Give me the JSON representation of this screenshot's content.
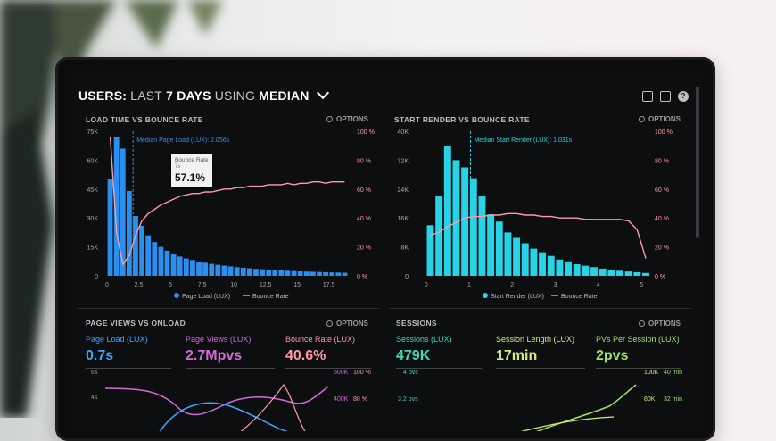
{
  "header": {
    "title_prefix": "USERS:",
    "title_mid1": "LAST",
    "title_days": "7 DAYS",
    "title_mid2": "USING",
    "title_agg": "MEDIAN"
  },
  "panels": {
    "load": {
      "title": "LOAD TIME VS BOUNCE RATE",
      "options": "OPTIONS",
      "marker_label": "Median Page Load (LUX): 2.056s",
      "legend_a": "Page Load (LUX)",
      "legend_b": "Bounce Rate",
      "tooltip": {
        "title": "Bounce Rate",
        "sub": "7s",
        "value": "57.1%"
      }
    },
    "render": {
      "title": "START RENDER VS BOUNCE RATE",
      "options": "OPTIONS",
      "marker_label": "Median Start Render (LUX): 1.031s",
      "legend_a": "Start Render (LUX)",
      "legend_b": "Bounce Rate"
    },
    "pageviews": {
      "title": "PAGE VIEWS VS ONLOAD",
      "options": "OPTIONS",
      "metrics": [
        {
          "label": "Page Load (LUX)",
          "value": "0.7s"
        },
        {
          "label": "Page Views (LUX)",
          "value": "2.7Mpvs"
        },
        {
          "label": "Bounce Rate (LUX)",
          "value": "40.6%"
        }
      ],
      "right_axis": [
        "500K",
        "400K"
      ],
      "far_right_axis": [
        "100 %",
        "80 %"
      ],
      "left_axis": [
        "6s",
        "4s"
      ]
    },
    "sessions": {
      "title": "SESSIONS",
      "options": "OPTIONS",
      "metrics": [
        {
          "label": "Sessions (LUX)",
          "value": "479K"
        },
        {
          "label": "Session Length (LUX)",
          "value": "17min"
        },
        {
          "label": "PVs Per Session (LUX)",
          "value": "2pvs"
        }
      ],
      "left_axis": [
        "4 pvs",
        "3.2 pvs"
      ],
      "right_axis": [
        "100K",
        "80K"
      ],
      "far_right_axis": [
        "40 min",
        "32 min"
      ]
    }
  },
  "chart_data": [
    {
      "type": "bar",
      "title": "LOAD TIME VS BOUNCE RATE",
      "y_ticks": [
        "75K",
        "60K",
        "45K",
        "30K",
        "15K",
        "0"
      ],
      "y2_ticks": [
        "100 %",
        "80 %",
        "60 %",
        "40 %",
        "20 %",
        "0 %"
      ],
      "x_ticks": [
        "0",
        "2.5",
        "5",
        "7.5",
        "10",
        "12.5",
        "15",
        "17.5"
      ],
      "ylim": [
        0,
        75000
      ],
      "y2lim": [
        0,
        100
      ],
      "xlim": [
        0,
        19
      ],
      "series": [
        {
          "name": "Page Load (LUX)",
          "type": "bar",
          "x": [
            0,
            0.5,
            1,
            1.5,
            2,
            2.5,
            3,
            3.5,
            4,
            4.5,
            5,
            5.5,
            6,
            6.5,
            7,
            7.5,
            8,
            8.5,
            9,
            9.5,
            10,
            10.5,
            11,
            11.5,
            12,
            12.5,
            13,
            13.5,
            14,
            14.5,
            15,
            15.5,
            16,
            16.5,
            17,
            17.5,
            18,
            18.5
          ],
          "values": [
            50000,
            72000,
            66000,
            44000,
            31000,
            26000,
            21000,
            17500,
            15000,
            13000,
            11500,
            10000,
            9000,
            8200,
            7400,
            6800,
            6200,
            5700,
            5300,
            4900,
            4500,
            4200,
            3900,
            3600,
            3400,
            3200,
            3000,
            2800,
            2600,
            2500,
            2300,
            2200,
            2100,
            2000,
            1900,
            1800,
            1700,
            1600
          ]
        },
        {
          "name": "Bounce Rate",
          "type": "line",
          "axis": "y2",
          "x": [
            0,
            0.5,
            1,
            1.5,
            2,
            2.5,
            3,
            3.5,
            4,
            4.5,
            5,
            5.5,
            6,
            6.5,
            7,
            7.5,
            8,
            8.5,
            9,
            9.5,
            10,
            10.5,
            11,
            11.5,
            12,
            12.5,
            13,
            13.5,
            14,
            14.5,
            15,
            15.5,
            16,
            16.5,
            17,
            17.5,
            18,
            18.5
          ],
          "values": [
            96,
            30,
            8,
            14,
            28,
            38,
            43,
            46,
            49,
            51,
            53,
            55,
            56,
            57,
            57,
            58,
            58,
            59,
            60,
            60,
            61,
            61,
            62,
            62,
            62,
            63,
            63,
            63,
            64,
            63,
            64,
            64,
            65,
            65,
            64,
            65,
            65,
            65
          ]
        }
      ],
      "annotations": [
        "Median Page Load (LUX): 2.056s",
        "Bounce Rate 7s 57.1%"
      ]
    },
    {
      "type": "bar",
      "title": "START RENDER VS BOUNCE RATE",
      "y_ticks": [
        "40K",
        "32K",
        "24K",
        "16K",
        "8K",
        "0"
      ],
      "y2_ticks": [
        "100 %",
        "80 %",
        "60 %",
        "40 %",
        "20 %",
        "0 %"
      ],
      "x_ticks": [
        "0",
        "1",
        "2",
        "3",
        "4",
        "5"
      ],
      "ylim": [
        0,
        40000
      ],
      "y2lim": [
        0,
        100
      ],
      "xlim": [
        -0.2,
        5.1
      ],
      "series": [
        {
          "name": "Start Render (LUX)",
          "type": "bar",
          "x": [
            0,
            0.2,
            0.4,
            0.6,
            0.8,
            1,
            1.2,
            1.4,
            1.6,
            1.8,
            2,
            2.2,
            2.4,
            2.6,
            2.8,
            3,
            3.2,
            3.4,
            3.6,
            3.8,
            4,
            4.2,
            4.4,
            4.6,
            4.8,
            5
          ],
          "values": [
            14000,
            22000,
            36000,
            32000,
            30000,
            27000,
            22000,
            17000,
            15000,
            12000,
            10500,
            9000,
            7500,
            6500,
            5500,
            4500,
            4000,
            3200,
            2800,
            2400,
            2000,
            1700,
            1400,
            1200,
            1000,
            800
          ]
        },
        {
          "name": "Bounce Rate",
          "type": "line",
          "axis": "y2",
          "x": [
            0,
            0.2,
            0.4,
            0.6,
            0.8,
            1,
            1.2,
            1.4,
            1.6,
            1.8,
            2,
            2.2,
            2.4,
            2.6,
            2.8,
            3,
            3.2,
            3.4,
            3.6,
            3.8,
            4,
            4.2,
            4.4,
            4.6,
            4.8,
            5
          ],
          "values": [
            28,
            30,
            34,
            37,
            40,
            41,
            41,
            42,
            42,
            43,
            43,
            42,
            42,
            41,
            41,
            40,
            40,
            40,
            39,
            39,
            39,
            39,
            39,
            38,
            32,
            12
          ]
        }
      ],
      "annotations": [
        "Median Start Render (LUX): 1.031s"
      ]
    }
  ]
}
